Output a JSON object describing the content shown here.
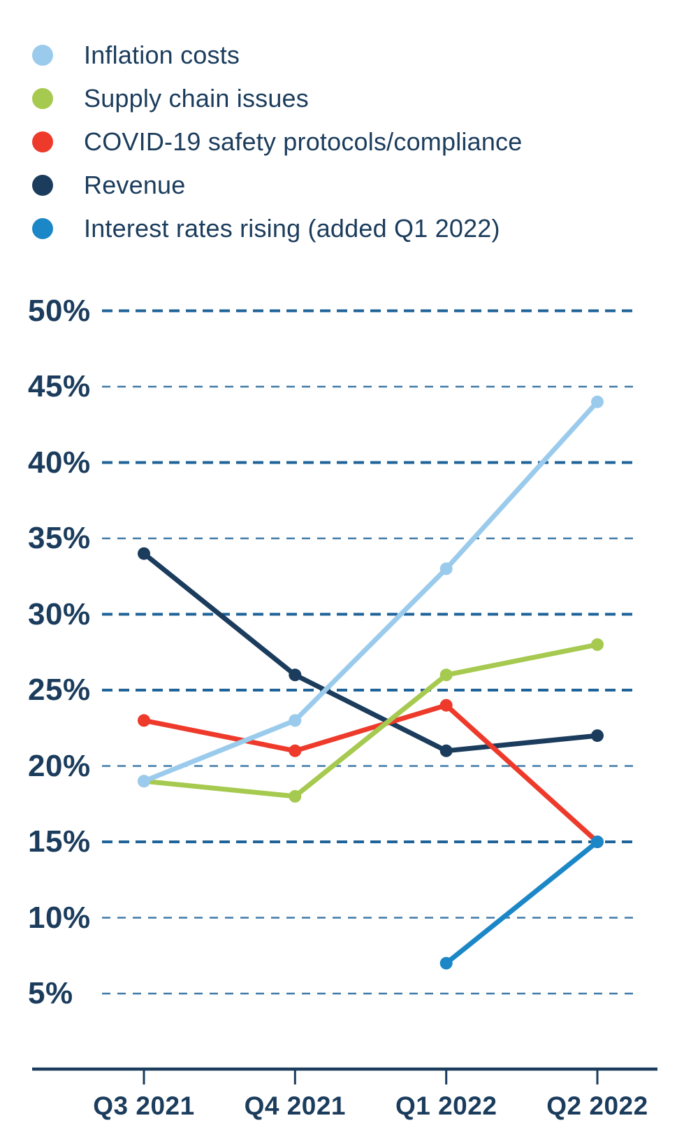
{
  "page": {
    "background": "#ffffff",
    "text_color": "#1b3c5c"
  },
  "legend": {
    "position": "top-left",
    "items": [
      {
        "label": "Inflation costs",
        "color": "#9bcbec"
      },
      {
        "label": "Supply chain issues",
        "color": "#a6c94f"
      },
      {
        "label": "COVID-19 safety protocols/compliance",
        "color": "#ed3a2b"
      },
      {
        "label": "Revenue",
        "color": "#1b3c5c"
      },
      {
        "label": "Interest rates rising (added Q1 2022)",
        "color": "#1b87c7"
      }
    ]
  },
  "chart_data": {
    "type": "line",
    "categories": [
      "Q3 2021",
      "Q4 2021",
      "Q1 2022",
      "Q2 2022"
    ],
    "series": [
      {
        "name": "Inflation costs",
        "color": "#9bcbec",
        "values": [
          19,
          23,
          33,
          44
        ]
      },
      {
        "name": "Supply chain issues",
        "color": "#a6c94f",
        "values": [
          19,
          18,
          26,
          28
        ]
      },
      {
        "name": "COVID-19 safety protocols/compliance",
        "color": "#ed3a2b",
        "values": [
          23,
          21,
          24,
          15
        ]
      },
      {
        "name": "Revenue",
        "color": "#1b3c5c",
        "values": [
          34,
          26,
          21,
          22
        ]
      },
      {
        "name": "Interest rates rising (added Q1 2022)",
        "color": "#1b87c7",
        "values": [
          null,
          null,
          7,
          15
        ]
      }
    ],
    "title": "",
    "xlabel": "",
    "ylabel": "",
    "y_axis": {
      "min": 5,
      "max": 50,
      "step": 5,
      "unit": "%",
      "tick_values": [
        50,
        45,
        40,
        35,
        30,
        25,
        20,
        15,
        10,
        5
      ],
      "tick_labels": [
        "50%",
        "45%",
        "40%",
        "35%",
        "30%",
        "25%",
        "20%",
        "15%",
        "10%",
        "5%"
      ]
    },
    "grid": true,
    "gridline_style": "dashed",
    "grid_color": "#1f6398",
    "axis_color": "#1b3c5c",
    "legend_position": "top-left",
    "marker": "circle",
    "notes": "Interest rates rising series starts at Q1 2022"
  }
}
